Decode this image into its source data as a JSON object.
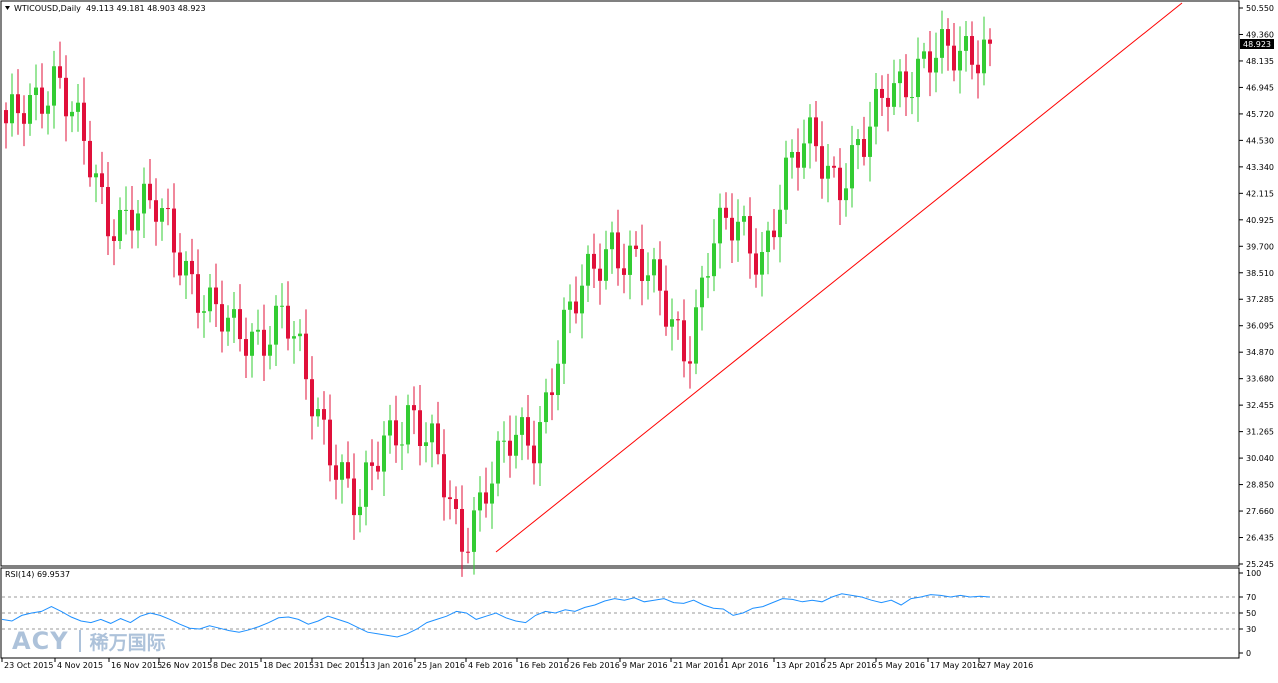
{
  "header": {
    "menu_arrow": "triangle-down-icon",
    "symbol_line": "WTICOUSD,Daily  49.113 49.181 48.903 48.923"
  },
  "current_price": "48.923",
  "rsi_header": "RSI(14) 69.9537",
  "watermark": {
    "brand": "ACY",
    "cn": "稀万国际"
  },
  "colors": {
    "bull": "#33cc33",
    "bear": "#e0103a",
    "trendline": "#ff0000",
    "rsi": "#1e90ff"
  },
  "chart_data": [
    {
      "type": "candlestick",
      "title": "WTICOUSD,Daily",
      "ohlc_last": [
        49.113,
        49.181,
        48.903,
        48.923
      ],
      "y_ticks": [
        "50.550",
        "49.360",
        "48.135",
        "46.945",
        "45.720",
        "44.530",
        "43.340",
        "42.115",
        "40.925",
        "39.700",
        "38.510",
        "37.285",
        "36.095",
        "34.870",
        "33.680",
        "32.455",
        "31.265",
        "30.040",
        "28.850",
        "27.660",
        "26.435",
        "25.245"
      ],
      "ylim": [
        25.245,
        50.55
      ],
      "x_ticks": [
        "23 Oct 2015",
        "4 Nov 2015",
        "16 Nov 2015",
        "26 Nov 2015",
        "8 Dec 2015",
        "18 Dec 2015",
        "31 Dec 2015",
        "13 Jan 2016",
        "25 Jan 2016",
        "4 Feb 2016",
        "16 Feb 2016",
        "26 Feb 2016",
        "9 Mar 2016",
        "21 Mar 2016",
        "1 Apr 2016",
        "13 Apr 2016",
        "25 Apr 2016",
        "5 May 2016",
        "17 May 2016",
        "27 May 2016"
      ],
      "trendline": {
        "from": [
          "11 Feb 2016",
          25.8
        ],
        "to": [
          "after 27 May 2016",
          50.6
        ],
        "color": "#ff0000"
      },
      "close_path": [
        {
          "date": "21 Oct 2015",
          "close": 44.8
        },
        {
          "date": "30 Oct 2015",
          "close": 46.2
        },
        {
          "date": "3 Nov 2015",
          "close": 47.8
        },
        {
          "date": "6 Nov 2015",
          "close": 44.3
        },
        {
          "date": "12 Nov 2015",
          "close": 41.0
        },
        {
          "date": "20 Nov 2015",
          "close": 41.5
        },
        {
          "date": "26 Nov 2015",
          "close": 41.1
        },
        {
          "date": "4 Dec 2015",
          "close": 39.3
        },
        {
          "date": "9 Dec 2015",
          "close": 37.0
        },
        {
          "date": "16 Dec 2015",
          "close": 35.5
        },
        {
          "date": "21 Dec 2015",
          "close": 35.8
        },
        {
          "date": "31 Dec 2015",
          "close": 36.6
        },
        {
          "date": "6 Jan 2016",
          "close": 33.0
        },
        {
          "date": "13 Jan 2016",
          "close": 30.5
        },
        {
          "date": "20 Jan 2016",
          "close": 27.5
        },
        {
          "date": "25 Jan 2016",
          "close": 30.8
        },
        {
          "date": "28 Jan 2016",
          "close": 32.5
        },
        {
          "date": "4 Feb 2016",
          "close": 30.0
        },
        {
          "date": "11 Feb 2016",
          "close": 26.2
        },
        {
          "date": "16 Feb 2016",
          "close": 29.0
        },
        {
          "date": "23 Feb 2016",
          "close": 30.5
        },
        {
          "date": "26 Feb 2016",
          "close": 31.0
        },
        {
          "date": "4 Mar 2016",
          "close": 35.8
        },
        {
          "date": "9 Mar 2016",
          "close": 37.8
        },
        {
          "date": "17 Mar 2016",
          "close": 40.1
        },
        {
          "date": "21 Mar 2016",
          "close": 39.0
        },
        {
          "date": "28 Mar 2016",
          "close": 37.0
        },
        {
          "date": "5 Apr 2016",
          "close": 35.2
        },
        {
          "date": "11 Apr 2016",
          "close": 39.8
        },
        {
          "date": "14 Apr 2016",
          "close": 40.6
        },
        {
          "date": "18 Apr 2016",
          "close": 39.5
        },
        {
          "date": "25 Apr 2016",
          "close": 42.8
        },
        {
          "date": "29 Apr 2016",
          "close": 44.8
        },
        {
          "date": "5 May 2016",
          "close": 42.7
        },
        {
          "date": "10 May 2016",
          "close": 44.0
        },
        {
          "date": "17 May 2016",
          "close": 47.3
        },
        {
          "date": "20 May 2016",
          "close": 47.6
        },
        {
          "date": "24 May 2016",
          "close": 48.1
        },
        {
          "date": "27 May 2016",
          "close": 48.9
        },
        {
          "date": "31 May 2016",
          "close": 48.9
        }
      ]
    },
    {
      "type": "line",
      "title": "RSI(14) 69.9537",
      "y_ticks": [
        "100",
        "70",
        "50",
        "30",
        "0"
      ],
      "ylim": [
        0,
        100
      ],
      "levels": [
        70,
        50,
        30
      ],
      "series": [
        {
          "values": [
            42,
            40,
            47,
            50,
            52,
            58,
            52,
            45,
            40,
            38,
            42,
            37,
            43,
            38,
            46,
            50,
            47,
            42,
            36,
            31,
            30,
            34,
            31,
            28,
            26,
            29,
            33,
            38,
            44,
            45,
            42,
            36,
            40,
            46,
            42,
            38,
            32,
            26,
            24,
            22,
            20,
            24,
            30,
            38,
            42,
            46,
            52,
            50,
            42,
            46,
            50,
            44,
            40,
            38,
            47,
            52,
            50,
            54,
            52,
            57,
            60,
            65,
            68,
            66,
            69,
            64,
            66,
            68,
            63,
            62,
            66,
            60,
            56,
            55,
            47,
            50,
            56,
            58,
            63,
            68,
            67,
            64,
            66,
            64,
            70,
            74,
            72,
            70,
            66,
            63,
            66,
            60,
            68,
            70,
            73,
            72,
            70,
            72,
            70,
            71,
            70
          ]
        }
      ]
    }
  ]
}
